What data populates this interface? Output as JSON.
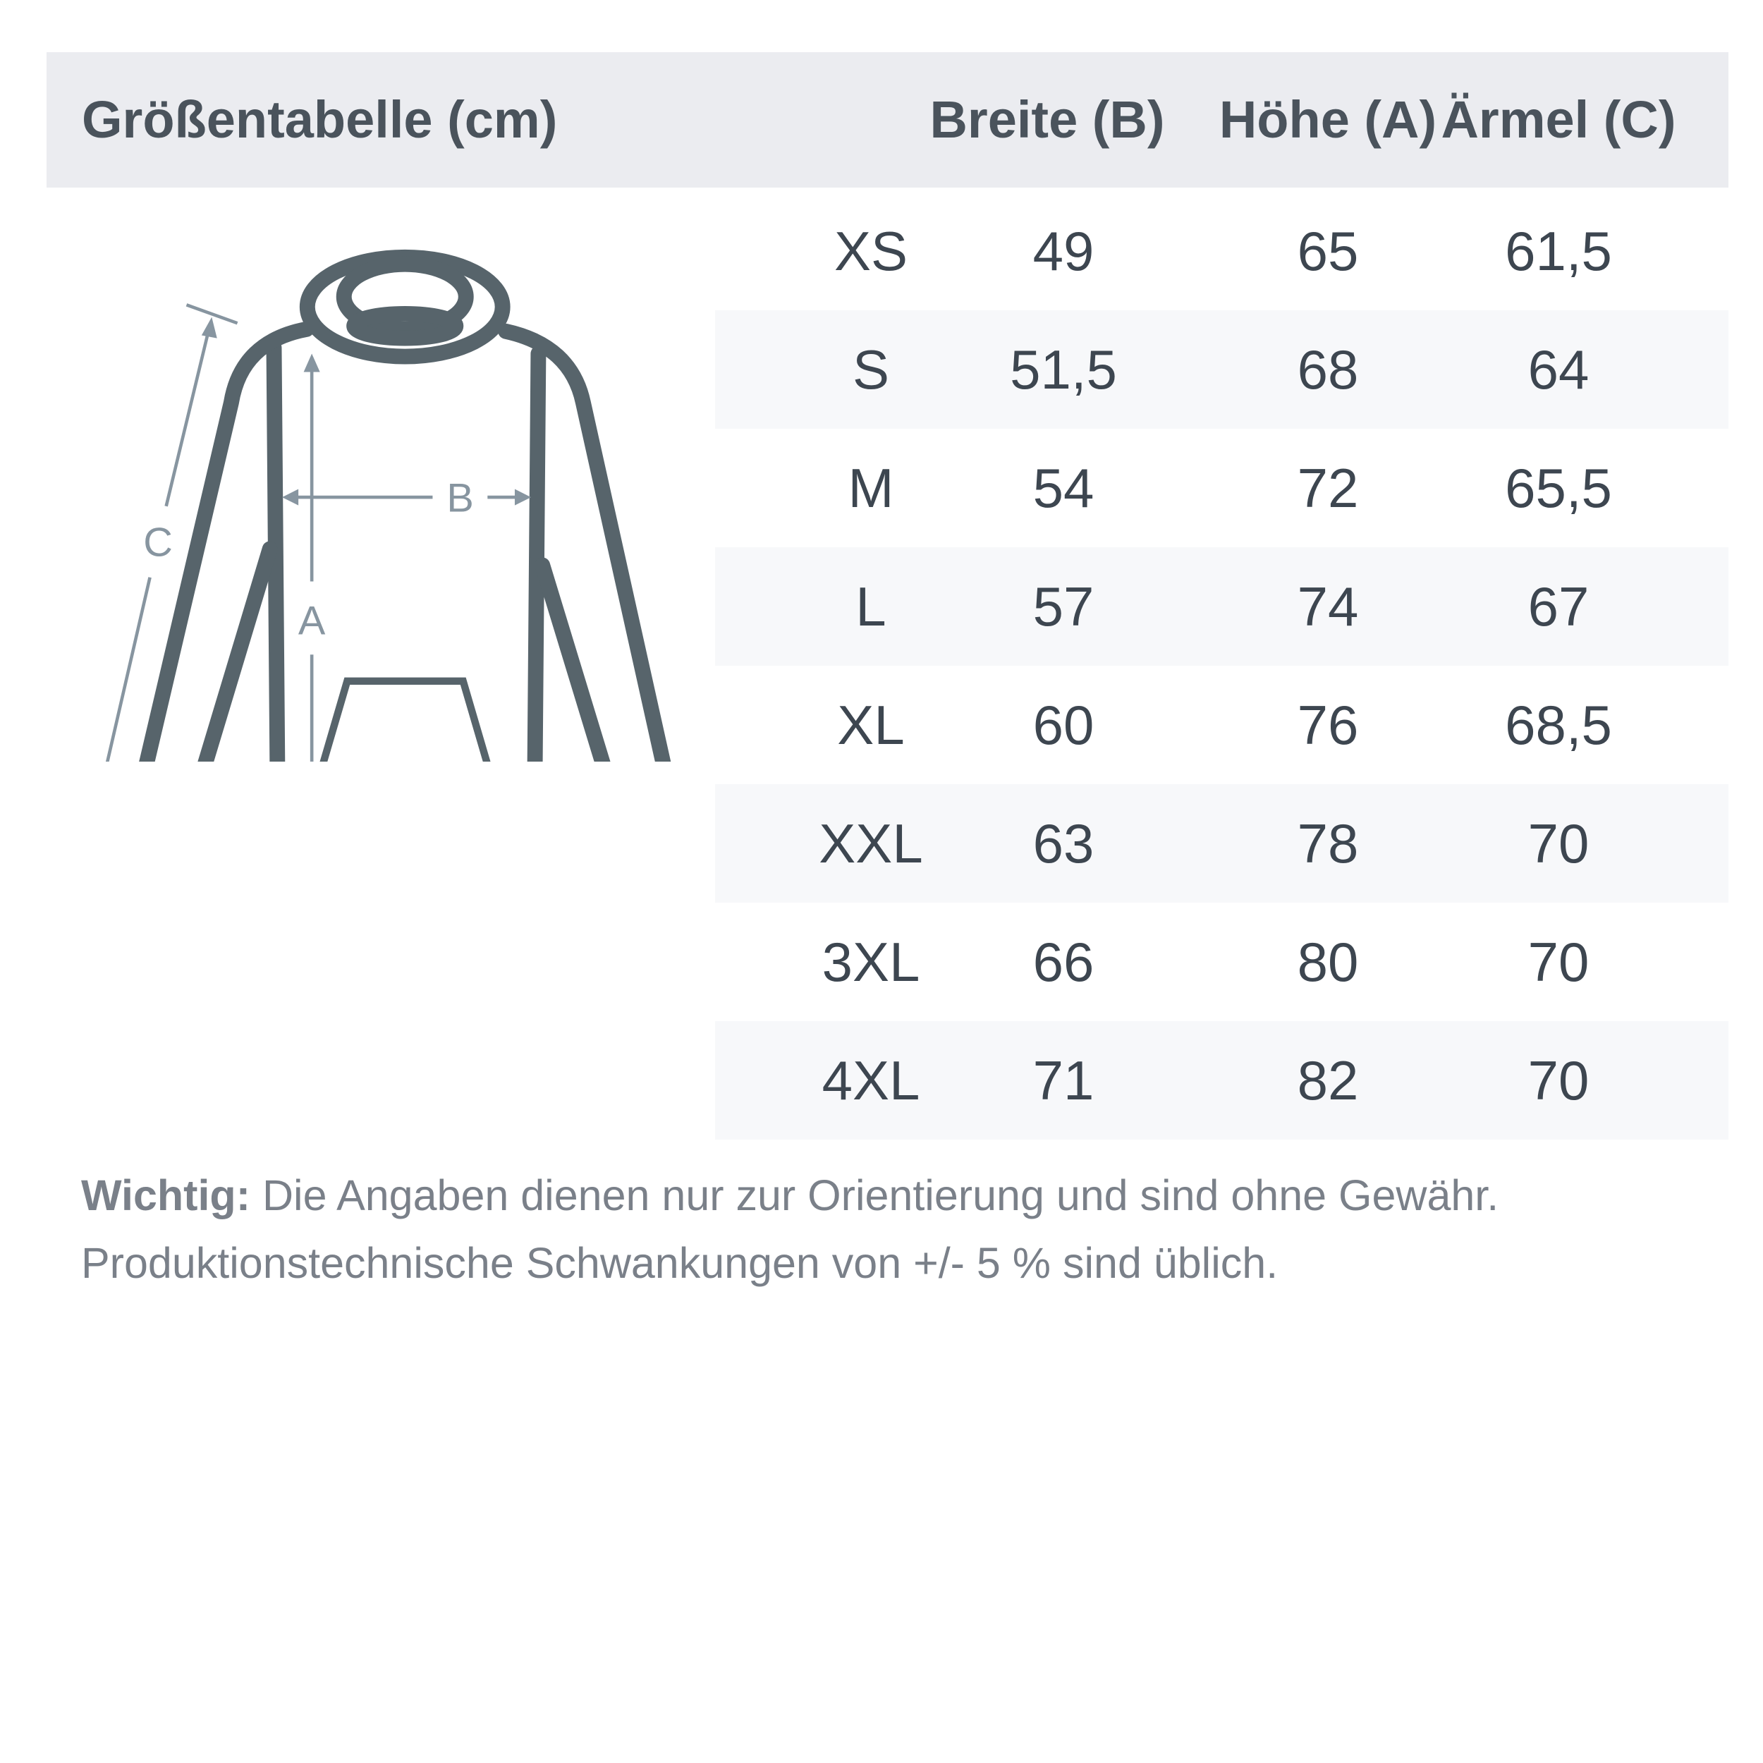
{
  "header": {
    "title": "Größentabelle (cm)",
    "columns": [
      "Breite (B)",
      "Höhe (A)",
      "Ärmel (C)"
    ]
  },
  "diagram": {
    "labels": {
      "a": "A",
      "b": "B",
      "c": "C"
    },
    "colors": {
      "outline": "#57646b",
      "measure": "#8795a0"
    }
  },
  "rows": [
    {
      "size": "XS",
      "breite": "49",
      "hoehe": "65",
      "aermel": "61,5"
    },
    {
      "size": "S",
      "breite": "51,5",
      "hoehe": "68",
      "aermel": "64"
    },
    {
      "size": "M",
      "breite": "54",
      "hoehe": "72",
      "aermel": "65,5"
    },
    {
      "size": "L",
      "breite": "57",
      "hoehe": "74",
      "aermel": "67"
    },
    {
      "size": "XL",
      "breite": "60",
      "hoehe": "76",
      "aermel": "68,5"
    },
    {
      "size": "XXL",
      "breite": "63",
      "hoehe": "78",
      "aermel": "70"
    },
    {
      "size": "3XL",
      "breite": "66",
      "hoehe": "80",
      "aermel": "70"
    },
    {
      "size": "4XL",
      "breite": "71",
      "hoehe": "82",
      "aermel": "70"
    }
  ],
  "note": {
    "label": "Wichtig:",
    "line1": " Die Angaben dienen nur zur Orientierung und sind ohne Gewähr.",
    "line2": "Produktionstechnische Schwankungen von +/- 5 % sind üblich."
  }
}
